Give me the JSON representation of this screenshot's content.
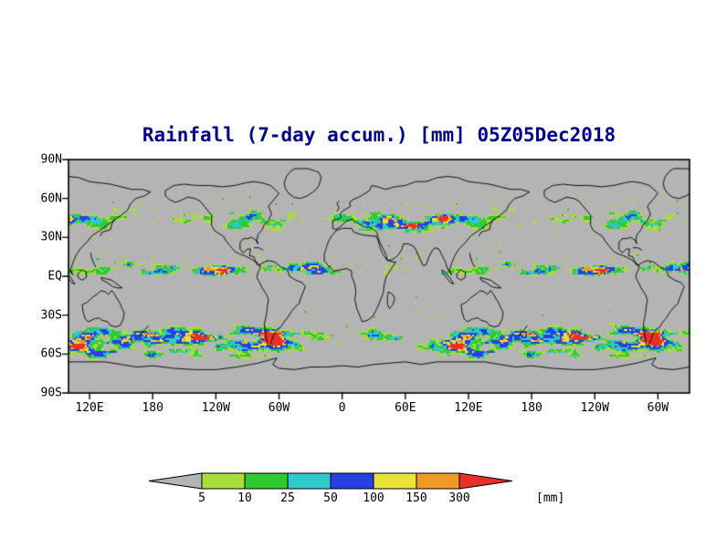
{
  "title": "Rainfall (7-day accum.) [mm] 05Z05Dec2018",
  "colors": {
    "title": "#00008b",
    "page_background": "#ffffff",
    "map_background": "#b4b4b4",
    "frame": "#000000",
    "labels": "#000000"
  },
  "map": {
    "lat_labels": [
      "90N",
      "60N",
      "30N",
      "EQ",
      "30S",
      "60S",
      "90S"
    ],
    "lon_labels": [
      "120E",
      "180",
      "120W",
      "60W",
      "0",
      "60E",
      "120E",
      "180",
      "120W",
      "60W"
    ]
  },
  "colorbar": {
    "tick_labels": [
      "5",
      "10",
      "25",
      "50",
      "100",
      "150",
      "300"
    ],
    "unit_label": "[mm]",
    "below_min_color": "#b4b4b4",
    "segment_colors": [
      "#aadc3c",
      "#2fca2f",
      "#30c9c9",
      "#2840e0",
      "#e8e23a",
      "#ef9a28"
    ],
    "above_max_color": "#e83028"
  },
  "chart_data": {
    "type": "heatmap",
    "title": "Rainfall (7-day accum.) [mm] 05Z05Dec2018",
    "x_tick_labels": [
      "120E",
      "180",
      "120W",
      "60W",
      "0",
      "60E",
      "120E",
      "180",
      "120W",
      "60W"
    ],
    "y_tick_labels": [
      "90N",
      "60N",
      "30N",
      "EQ",
      "30S",
      "60S",
      "90S"
    ],
    "colorbar_levels_mm": [
      5,
      10,
      25,
      50,
      100,
      150,
      300
    ],
    "colorbar_colors": [
      "#b4b4b4",
      "#aadc3c",
      "#2fca2f",
      "#30c9c9",
      "#2840e0",
      "#e8e23a",
      "#ef9a28",
      "#e83028"
    ],
    "units": "mm",
    "projection": "equirectangular world map, longitude axis repeating past 360 degrees (roughly 100E around to 60W a second time)",
    "summary": "7-day accumulated rainfall on a gray world map: dense green/cyan/blue bands with yellow-orange cores along the ITCZ near the equator, the northern mid-latitude storm tracks (30N-60N) and the Southern Ocean storm track (30S-65S); polar caps and subtropical deserts mostly rain-free."
  }
}
